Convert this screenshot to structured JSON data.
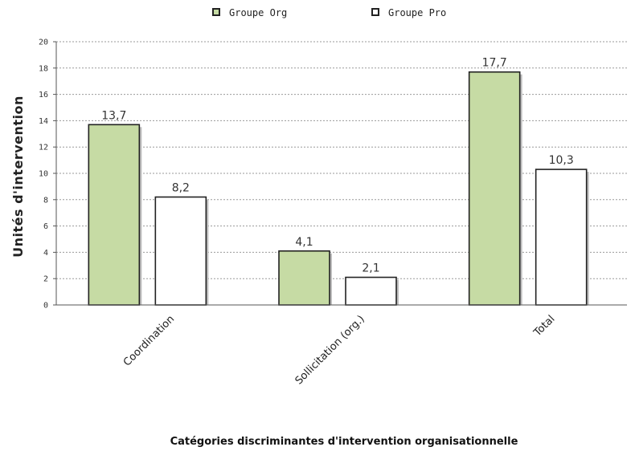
{
  "chart_data": {
    "type": "bar",
    "categories": [
      "Coordination",
      "Sollicitation (org.)",
      "Total"
    ],
    "series": [
      {
        "name": "Groupe Org",
        "values": [
          13.7,
          4.1,
          17.7
        ],
        "labels": [
          "13,7",
          "4,1",
          "17,7"
        ],
        "color": "#c6dba4"
      },
      {
        "name": "Groupe Pro",
        "values": [
          8.2,
          2.1,
          10.3
        ],
        "labels": [
          "8,2",
          "2,1",
          "10,3"
        ],
        "color": "#ffffff"
      }
    ],
    "title": "",
    "xlabel": "Catégories discriminantes d'intervention organisationnelle",
    "ylabel": "Unités d'intervention",
    "ylim": [
      0,
      20
    ],
    "yticks": [
      0,
      2,
      4,
      6,
      8,
      10,
      12,
      14,
      16,
      18,
      20
    ],
    "grid": true,
    "legend_position": "top-center"
  }
}
